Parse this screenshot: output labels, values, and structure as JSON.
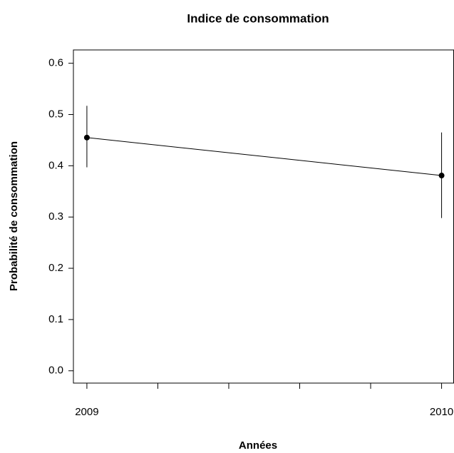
{
  "chart_data": {
    "type": "line",
    "title": "Indice de consommation",
    "x_label": "Années",
    "y_label": "Probabilité de consommation",
    "x": [
      2009,
      2010
    ],
    "series": [
      {
        "color": "#000000",
        "values": [
          0.455,
          0.381
        ],
        "lower": [
          0.397,
          0.298
        ],
        "upper": [
          0.517,
          0.465
        ]
      }
    ],
    "xlim": [
      2008.962,
      2010.034
    ],
    "xticks": [
      2009,
      2010
    ],
    "xminor_ticks": [
      2009.2,
      2009.4,
      2009.6,
      2009.8
    ],
    "ylim": [
      -0.024,
      0.626
    ],
    "yticks": [
      {
        "value": 0,
        "label": "0.0"
      },
      0.1,
      0.2,
      0.3,
      0.4,
      0.5,
      0.6
    ],
    "grid": false
  }
}
